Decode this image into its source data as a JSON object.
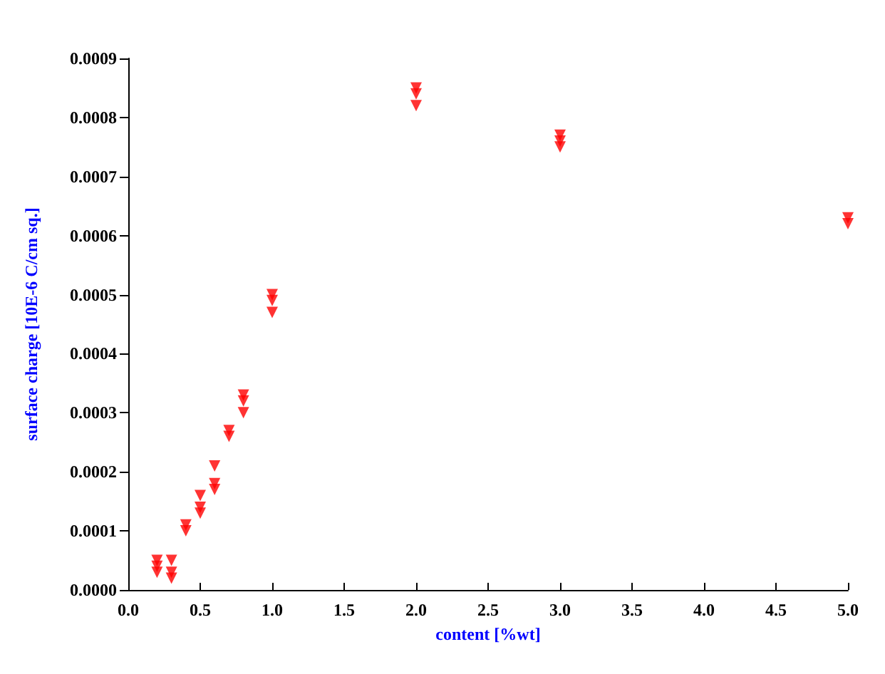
{
  "chart_data": {
    "type": "scatter",
    "xlabel": "content [%wt]",
    "ylabel": "surface charge [10E-6 C/cm sq.]",
    "x": [
      0.2,
      0.2,
      0.2,
      0.3,
      0.3,
      0.3,
      0.4,
      0.4,
      0.5,
      0.5,
      0.5,
      0.6,
      0.6,
      0.6,
      0.7,
      0.7,
      0.8,
      0.8,
      0.8,
      1.0,
      1.0,
      1.0,
      2.0,
      2.0,
      2.0,
      3.0,
      3.0,
      3.0,
      5.0,
      5.0
    ],
    "series": [
      {
        "color": "#ff0000",
        "values": [
          5e-05,
          4e-05,
          3e-05,
          5e-05,
          3e-05,
          2e-05,
          0.00011,
          0.0001,
          0.00016,
          0.00014,
          0.00013,
          0.00021,
          0.00018,
          0.00017,
          0.00027,
          0.00026,
          0.00033,
          0.00032,
          0.0003,
          0.0005,
          0.00049,
          0.00047,
          0.00085,
          0.00084,
          0.00082,
          0.00077,
          0.00076,
          0.00075,
          0.00063,
          0.00062
        ]
      }
    ],
    "xlim": [
      0,
      5
    ],
    "xticks": [
      {
        "value": 0,
        "label": "0.0"
      },
      {
        "value": 0.5,
        "label": "0.5"
      },
      {
        "value": 1,
        "label": "1.0"
      },
      {
        "value": 1.5,
        "label": "1.5"
      },
      {
        "value": 2,
        "label": "2.0"
      },
      {
        "value": 2.5,
        "label": "2.5"
      },
      {
        "value": 3,
        "label": "3.0"
      },
      {
        "value": 3.5,
        "label": "3.5"
      },
      {
        "value": 4,
        "label": "4.0"
      },
      {
        "value": 4.5,
        "label": "4.5"
      },
      {
        "value": 5,
        "label": "5.0"
      }
    ],
    "ylim": [
      0,
      0.0009
    ],
    "yticks": [
      {
        "value": 0,
        "label": "0.0000"
      },
      {
        "value": 0.0001,
        "label": "0.0001"
      },
      {
        "value": 0.0002,
        "label": "0.0002"
      },
      {
        "value": 0.0003,
        "label": "0.0003"
      },
      {
        "value": 0.0004,
        "label": "0.0004"
      },
      {
        "value": 0.0005,
        "label": "0.0005"
      },
      {
        "value": 0.0006,
        "label": "0.0006"
      },
      {
        "value": 0.0007,
        "label": "0.0007"
      },
      {
        "value": 0.0008,
        "label": "0.0008"
      },
      {
        "value": 0.0009,
        "label": "0.0009"
      }
    ],
    "grid": false,
    "marker": "triangle"
  }
}
